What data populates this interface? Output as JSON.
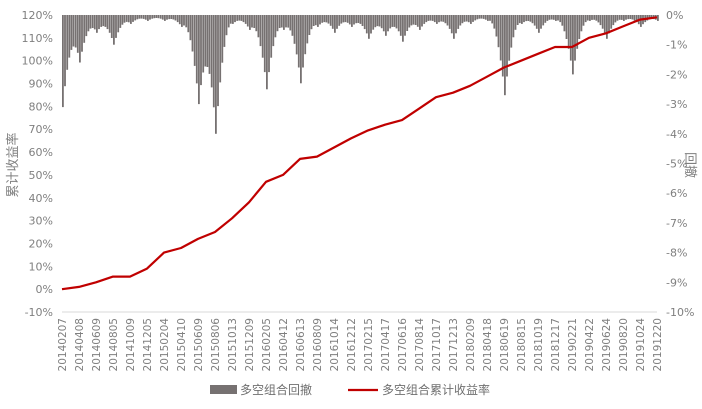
{
  "chart_data": {
    "type": "bar+line",
    "ylabel_left": "累计收益率",
    "ylabel_right": "回撤",
    "ylim_left": [
      -0.1,
      1.2
    ],
    "ylim_right": [
      -0.1,
      0.0
    ],
    "yticks_left": [
      "120%",
      "110%",
      "100%",
      "90%",
      "80%",
      "70%",
      "60%",
      "50%",
      "40%",
      "30%",
      "20%",
      "10%",
      "0%",
      "-10%"
    ],
    "yticks_right": [
      "0%",
      "-1%",
      "-2%",
      "-3%",
      "-4%",
      "-5%",
      "-6%",
      "-7%",
      "-8%",
      "-9%",
      "-10%"
    ],
    "categories": [
      "20140207",
      "20140408",
      "20140609",
      "20140805",
      "20141009",
      "20141205",
      "20150204",
      "20150410",
      "20150609",
      "20150806",
      "20151013",
      "20151209",
      "20160205",
      "20160412",
      "20160613",
      "20160809",
      "20161014",
      "20161212",
      "20170215",
      "20170417",
      "20170616",
      "20170814",
      "20171017",
      "20171213",
      "20180209",
      "20180418",
      "20180619",
      "20180815",
      "20181019",
      "20181217",
      "20190221",
      "20190422",
      "20190624",
      "20190820",
      "20191024",
      "20191220"
    ],
    "grid": false,
    "legend_position": "bottom",
    "series": [
      {
        "name": "多空组合回撤",
        "type": "bar",
        "axis": "right",
        "color": "#767171",
        "values": [
          -0.031,
          -0.016,
          -0.006,
          -0.01,
          -0.003,
          -0.002,
          -0.002,
          -0.004,
          -0.03,
          -0.04,
          -0.003,
          -0.005,
          -0.025,
          -0.005,
          -0.023,
          -0.004,
          -0.006,
          -0.004,
          -0.008,
          -0.007,
          -0.009,
          -0.005,
          -0.003,
          -0.008,
          -0.003,
          -0.002,
          -0.027,
          -0.003,
          -0.006,
          -0.002,
          -0.02,
          -0.002,
          -0.008,
          -0.002,
          -0.004,
          -0.002
        ]
      },
      {
        "name": "多空组合累计收益率",
        "type": "line",
        "axis": "left",
        "color": "#c00000",
        "values": [
          0.0,
          0.01,
          0.03,
          0.055,
          0.055,
          0.09,
          0.16,
          0.18,
          0.22,
          0.25,
          0.31,
          0.38,
          0.47,
          0.5,
          0.57,
          0.58,
          0.62,
          0.66,
          0.695,
          0.72,
          0.74,
          0.79,
          0.84,
          0.86,
          0.89,
          0.93,
          0.97,
          1.0,
          1.03,
          1.06,
          1.06,
          1.1,
          1.12,
          1.15,
          1.18,
          1.19
        ]
      }
    ]
  }
}
